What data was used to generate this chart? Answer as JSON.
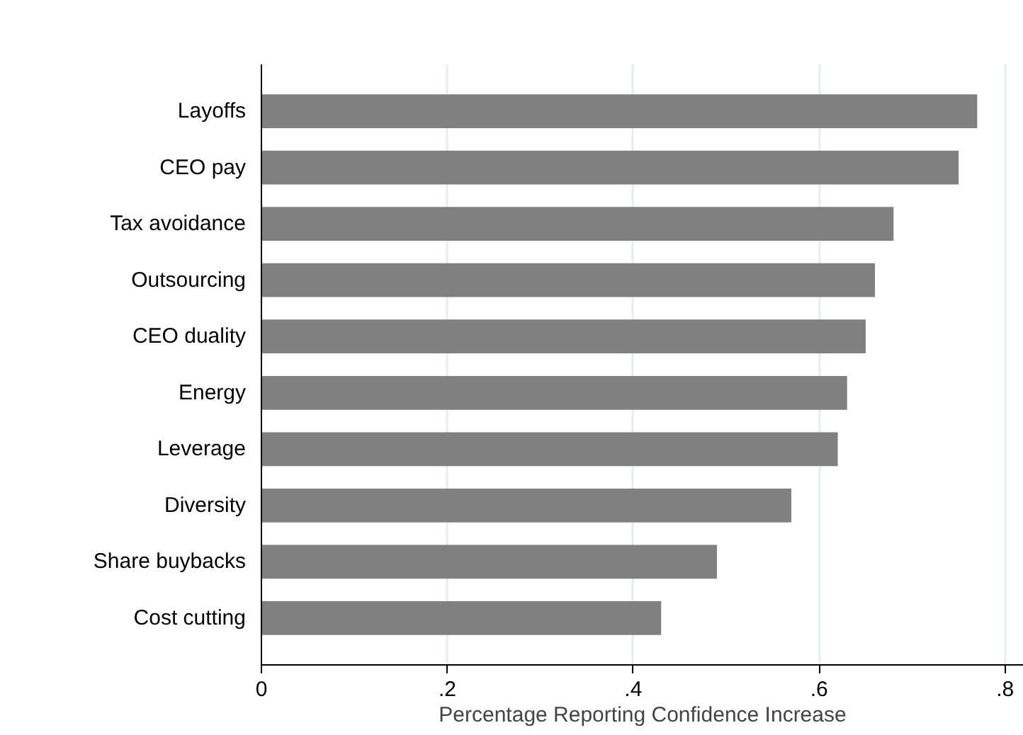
{
  "chart_data": {
    "type": "bar",
    "orientation": "horizontal",
    "xlabel": "Percentage Reporting Confidence Increase",
    "categories": [
      "Layoffs",
      "CEO pay",
      "Tax avoidance",
      "Outsourcing",
      "CEO duality",
      "Energy",
      "Leverage",
      "Diversity",
      "Share buybacks",
      "Cost cutting"
    ],
    "values": [
      0.77,
      0.75,
      0.68,
      0.66,
      0.65,
      0.63,
      0.62,
      0.57,
      0.49,
      0.43
    ],
    "color": "#808080",
    "xlim": [
      0,
      0.82
    ],
    "xticks": [
      {
        "value": 0,
        "label": "0"
      },
      {
        "value": 0.2,
        "label": ".2"
      },
      {
        "value": 0.4,
        "label": ".4"
      },
      {
        "value": 0.6,
        "label": ".6"
      },
      {
        "value": 0.8,
        "label": ".8"
      }
    ],
    "grid": "x"
  }
}
